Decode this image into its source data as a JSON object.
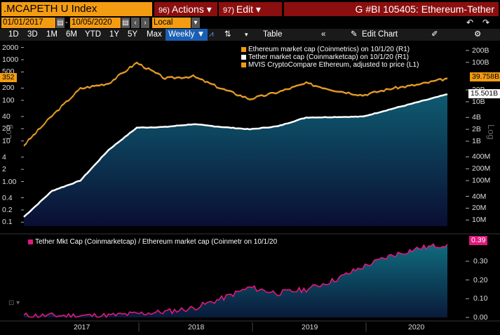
{
  "header": {
    "ticker": ".MCAPETH U Index",
    "actions_num": "96)",
    "actions_label": "Actions ▾",
    "edit_num": "97)",
    "edit_label": "Edit ▾",
    "title": "G #BI 105405: Ethereum-Tether"
  },
  "range": {
    "start": "01/01/2017",
    "end": "10/05/2020",
    "currency": "Local CCY"
  },
  "toolbar": {
    "periods": [
      "1D",
      "3D",
      "1M",
      "6M",
      "YTD",
      "1Y",
      "5Y",
      "Max"
    ],
    "frequency": "Weekly ▼",
    "table_label": "Table",
    "edit_chart_label": "Edit Chart"
  },
  "upper_panel": {
    "legend": [
      {
        "label": "Ethereum market cap (Coinmetrics) on 10/1/20 (R1)",
        "color": "#f39c12"
      },
      {
        "label": "Tether market cap (Coinmarketcap) on 10/1/20 (R1)",
        "color": "#ffffff"
      },
      {
        "label": "MVIS CryptoCompare Ethereum, adjusted to price (L1)",
        "color": "#f39c12"
      }
    ],
    "left_axis_label": "Log",
    "right_axis_label": "Log",
    "left_ticks": [
      "2000",
      "1000",
      "500",
      "200",
      "100",
      "40",
      "20",
      "10",
      "4",
      "2",
      "1.00",
      "0.4",
      "0.2",
      "0.1"
    ],
    "right_ticks": [
      "200B",
      "100B",
      "20B",
      "10B",
      "4B",
      "2B",
      "1B",
      "400M",
      "200M",
      "100M",
      "40M",
      "20M",
      "10M"
    ],
    "last_value_tags": [
      {
        "text": "352",
        "color": "#f39c12"
      },
      {
        "text": "39.758B",
        "color": "#f39c12"
      },
      {
        "text": "15.501B",
        "color": "#ffffff"
      }
    ]
  },
  "lower_panel": {
    "legend": "Tether Mkt Cap (Coinmarketcap) / Ethereum market cap (Coinmetr on 10/1/20",
    "legend_color": "#e0197d",
    "right_ticks": [
      "0.30",
      "0.20",
      "0.10",
      "0.00"
    ],
    "last_value_tag": "0.39"
  },
  "x_axis": {
    "years": [
      "2017",
      "2018",
      "2019",
      "2020"
    ]
  },
  "chart_data": [
    {
      "type": "line",
      "title": "",
      "scale": "log",
      "x": [
        "2017-01",
        "2017-04",
        "2017-07",
        "2017-10",
        "2018-01",
        "2018-04",
        "2018-07",
        "2018-10",
        "2019-01",
        "2019-04",
        "2019-07",
        "2019-10",
        "2020-01",
        "2020-04",
        "2020-07",
        "2020-10"
      ],
      "series": [
        {
          "name": "Ethereum market cap (Coinmetrics) on 10/1/20 (R1)",
          "axis": "right",
          "unit": "USD",
          "values": [
            800000000.0,
            4500000000.0,
            22000000000.0,
            30000000000.0,
            100000000000.0,
            40000000000.0,
            45000000000.0,
            22000000000.0,
            12000000000.0,
            18000000000.0,
            30000000000.0,
            20000000000.0,
            15000000000.0,
            22000000000.0,
            28000000000.0,
            40000000000.0
          ]
        },
        {
          "name": "Tether market cap (Coinmarketcap) on 10/1/20 (R1)",
          "axis": "right",
          "unit": "USD",
          "values": [
            12000000.0,
            55000000.0,
            100000000.0,
            600000000.0,
            2200000000.0,
            2300000000.0,
            2700000000.0,
            2300000000.0,
            2000000000.0,
            2400000000.0,
            4000000000.0,
            4100000000.0,
            4200000000.0,
            6500000000.0,
            10000000000.0,
            15500000000.0
          ]
        }
      ]
    },
    {
      "type": "area",
      "title": "",
      "x": [
        "2017-01",
        "2017-04",
        "2017-07",
        "2017-10",
        "2018-01",
        "2018-04",
        "2018-07",
        "2018-10",
        "2019-01",
        "2019-04",
        "2019-07",
        "2019-10",
        "2020-01",
        "2020-04",
        "2020-07",
        "2020-10"
      ],
      "series": [
        {
          "name": "Tether Mkt Cap (Coinmarketcap) / Ethereum market cap (Coinmetr on 10/1/20",
          "values": [
            0.01,
            0.01,
            0.01,
            0.01,
            0.02,
            0.03,
            0.05,
            0.1,
            0.16,
            0.13,
            0.15,
            0.2,
            0.27,
            0.33,
            0.37,
            0.39
          ]
        }
      ],
      "ylim": [
        0,
        0.4
      ]
    }
  ]
}
